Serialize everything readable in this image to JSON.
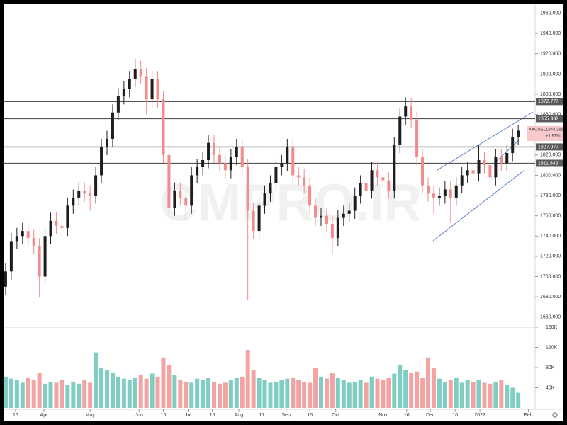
{
  "chart_data": {
    "type": "candlestick",
    "symbol": "XAUUSD",
    "watermark": "CMPRO.IR",
    "last_price": 1844.395,
    "last_change": "+1.91%",
    "levels": [
      1872.777,
      1855.932,
      1827.977,
      1811.849
    ],
    "up_color": "#1e1e1e",
    "down_color": "#f28b8b",
    "volume_up_color": "#7fcdc3",
    "volume_down_color": "#f4a3a3",
    "open": [
      1690,
      1705,
      1735,
      1740,
      1745,
      1738,
      1730,
      1700,
      1740,
      1755,
      1750,
      1748,
      1770,
      1778,
      1785,
      1782,
      1780,
      1800,
      1828,
      1836,
      1862,
      1878,
      1885,
      1895,
      1905,
      1898,
      1875,
      1895,
      1875,
      1820,
      1768,
      1785,
      1778,
      1770,
      1800,
      1808,
      1815,
      1832,
      1820,
      1812,
      1805,
      1818,
      1828,
      1808,
      1765,
      1745,
      1770,
      1782,
      1792,
      1808,
      1812,
      1828,
      1800,
      1798,
      1790,
      1770,
      1758,
      1760,
      1752,
      1738,
      1758,
      1762,
      1765,
      1780,
      1792,
      1785,
      1805,
      1798,
      1795,
      1785,
      1830,
      1858,
      1868,
      1855,
      1818,
      1790,
      1782,
      1778,
      1780,
      1786,
      1778,
      1790,
      1800,
      1805,
      1802,
      1815,
      1810,
      1798,
      1818,
      1812,
      1822,
      1838
    ],
    "high": [
      1713,
      1743,
      1748,
      1753,
      1753,
      1746,
      1738,
      1748,
      1763,
      1763,
      1758,
      1778,
      1786,
      1793,
      1793,
      1790,
      1808,
      1836,
      1844,
      1870,
      1886,
      1893,
      1903,
      1915,
      1913,
      1906,
      1903,
      1903,
      1883,
      1828,
      1793,
      1793,
      1786,
      1808,
      1816,
      1823,
      1840,
      1840,
      1828,
      1820,
      1826,
      1836,
      1836,
      1816,
      1773,
      1778,
      1790,
      1800,
      1816,
      1820,
      1836,
      1836,
      1808,
      1806,
      1798,
      1778,
      1768,
      1768,
      1760,
      1766,
      1770,
      1773,
      1788,
      1800,
      1800,
      1813,
      1813,
      1806,
      1803,
      1838,
      1866,
      1877,
      1876,
      1863,
      1826,
      1798,
      1790,
      1788,
      1794,
      1794,
      1798,
      1808,
      1813,
      1813,
      1830,
      1823,
      1818,
      1826,
      1826,
      1830,
      1846,
      1850
    ],
    "low": [
      1682,
      1697,
      1727,
      1732,
      1730,
      1722,
      1680,
      1692,
      1732,
      1742,
      1740,
      1740,
      1762,
      1770,
      1774,
      1765,
      1772,
      1792,
      1820,
      1828,
      1854,
      1870,
      1877,
      1887,
      1890,
      1860,
      1867,
      1867,
      1812,
      1760,
      1760,
      1770,
      1755,
      1762,
      1792,
      1800,
      1807,
      1812,
      1804,
      1797,
      1797,
      1810,
      1800,
      1677,
      1737,
      1737,
      1762,
      1774,
      1784,
      1800,
      1804,
      1792,
      1790,
      1782,
      1762,
      1750,
      1750,
      1744,
      1722,
      1730,
      1750,
      1754,
      1757,
      1772,
      1777,
      1777,
      1790,
      1787,
      1777,
      1777,
      1822,
      1850,
      1847,
      1810,
      1782,
      1774,
      1762,
      1770,
      1772,
      1753,
      1770,
      1782,
      1792,
      1794,
      1794,
      1802,
      1785,
      1790,
      1804,
      1804,
      1814,
      1830
    ],
    "close": [
      1705,
      1735,
      1740,
      1745,
      1738,
      1730,
      1700,
      1740,
      1755,
      1750,
      1748,
      1770,
      1778,
      1785,
      1782,
      1780,
      1800,
      1828,
      1836,
      1862,
      1878,
      1885,
      1895,
      1905,
      1898,
      1875,
      1895,
      1875,
      1820,
      1768,
      1785,
      1778,
      1770,
      1800,
      1808,
      1815,
      1832,
      1820,
      1812,
      1805,
      1818,
      1828,
      1808,
      1765,
      1745,
      1770,
      1782,
      1792,
      1808,
      1812,
      1828,
      1800,
      1798,
      1790,
      1770,
      1758,
      1760,
      1752,
      1738,
      1758,
      1762,
      1765,
      1780,
      1792,
      1785,
      1805,
      1798,
      1795,
      1785,
      1830,
      1858,
      1868,
      1855,
      1818,
      1790,
      1782,
      1778,
      1780,
      1786,
      1778,
      1790,
      1800,
      1805,
      1802,
      1815,
      1810,
      1798,
      1818,
      1812,
      1822,
      1838,
      1844
    ],
    "volume": [
      62000,
      58000,
      55000,
      50000,
      60000,
      55000,
      70000,
      48000,
      52000,
      50000,
      55000,
      45000,
      52000,
      48000,
      55000,
      50000,
      110000,
      80000,
      75000,
      70000,
      62000,
      58000,
      55000,
      60000,
      65000,
      58000,
      68000,
      62000,
      100000,
      85000,
      65000,
      55000,
      52000,
      50000,
      58000,
      55000,
      60000,
      52000,
      48000,
      50000,
      55000,
      60000,
      62000,
      115000,
      75000,
      60000,
      55000,
      50000,
      52000,
      55000,
      58000,
      60000,
      55000,
      52000,
      50000,
      80000,
      62000,
      58000,
      70000,
      60000,
      55000,
      50000,
      52000,
      55000,
      50000,
      62000,
      58000,
      55000,
      60000,
      68000,
      85000,
      75000,
      70000,
      72000,
      60000,
      100000,
      80000,
      58000,
      52000,
      55000,
      60000,
      50000,
      55000,
      52000,
      55000,
      50000,
      48000,
      52000,
      55000,
      45000,
      40000,
      30000
    ],
    "xlim": [
      -1,
      94
    ],
    "xticks": [
      {
        "value": 1.76,
        "label": "16"
      },
      {
        "value": 6.8,
        "label": "Apr"
      },
      {
        "value": 15,
        "label": "May"
      },
      {
        "value": 23.7,
        "label": "Jun"
      },
      {
        "value": 28,
        "label": "16"
      },
      {
        "value": 32.4,
        "label": "Jul"
      },
      {
        "value": 36.7,
        "label": "16"
      },
      {
        "value": 41.4,
        "label": "Aug"
      },
      {
        "value": 45.5,
        "label": "17"
      },
      {
        "value": 49.8,
        "label": "Sep"
      },
      {
        "value": 54,
        "label": "16"
      },
      {
        "value": 58.6,
        "label": "Oct"
      },
      {
        "value": 67,
        "label": "Nov"
      },
      {
        "value": 71.2,
        "label": "16"
      },
      {
        "value": 75.4,
        "label": "Dec"
      },
      {
        "value": 79.8,
        "label": "16"
      },
      {
        "value": 84.2,
        "label": "2022"
      },
      {
        "value": 92.8,
        "label": "Feb"
      }
    ],
    "ylim": [
      1650,
      1969.5
    ],
    "yticks": [
      {
        "value": 1660,
        "label": "1660.000"
      },
      {
        "value": 1680,
        "label": "1680.000"
      },
      {
        "value": 1700,
        "label": "1700.000"
      },
      {
        "value": 1720,
        "label": "1720.000"
      },
      {
        "value": 1740,
        "label": "1740.000"
      },
      {
        "value": 1760,
        "label": "1760.000"
      },
      {
        "value": 1780,
        "label": "1780.000"
      },
      {
        "value": 1800,
        "label": "1800.000"
      },
      {
        "value": 1820,
        "label": "1820.000"
      },
      {
        "value": 1840,
        "label": "1840.000"
      },
      {
        "value": 1860,
        "label": "1860.000"
      },
      {
        "value": 1880,
        "label": "1880.000"
      },
      {
        "value": 1900,
        "label": "1900.000"
      },
      {
        "value": 1920,
        "label": "1920.000"
      },
      {
        "value": 1940,
        "label": "1940.000"
      },
      {
        "value": 1960,
        "label": "1960.000"
      }
    ],
    "y2lim": [
      0,
      160000
    ],
    "y2ticks": [
      {
        "value": 40000,
        "label": "40K"
      },
      {
        "value": 80000,
        "label": "80K"
      },
      {
        "value": 120000,
        "label": "120K"
      },
      {
        "value": 160000,
        "label": "160K"
      }
    ]
  }
}
